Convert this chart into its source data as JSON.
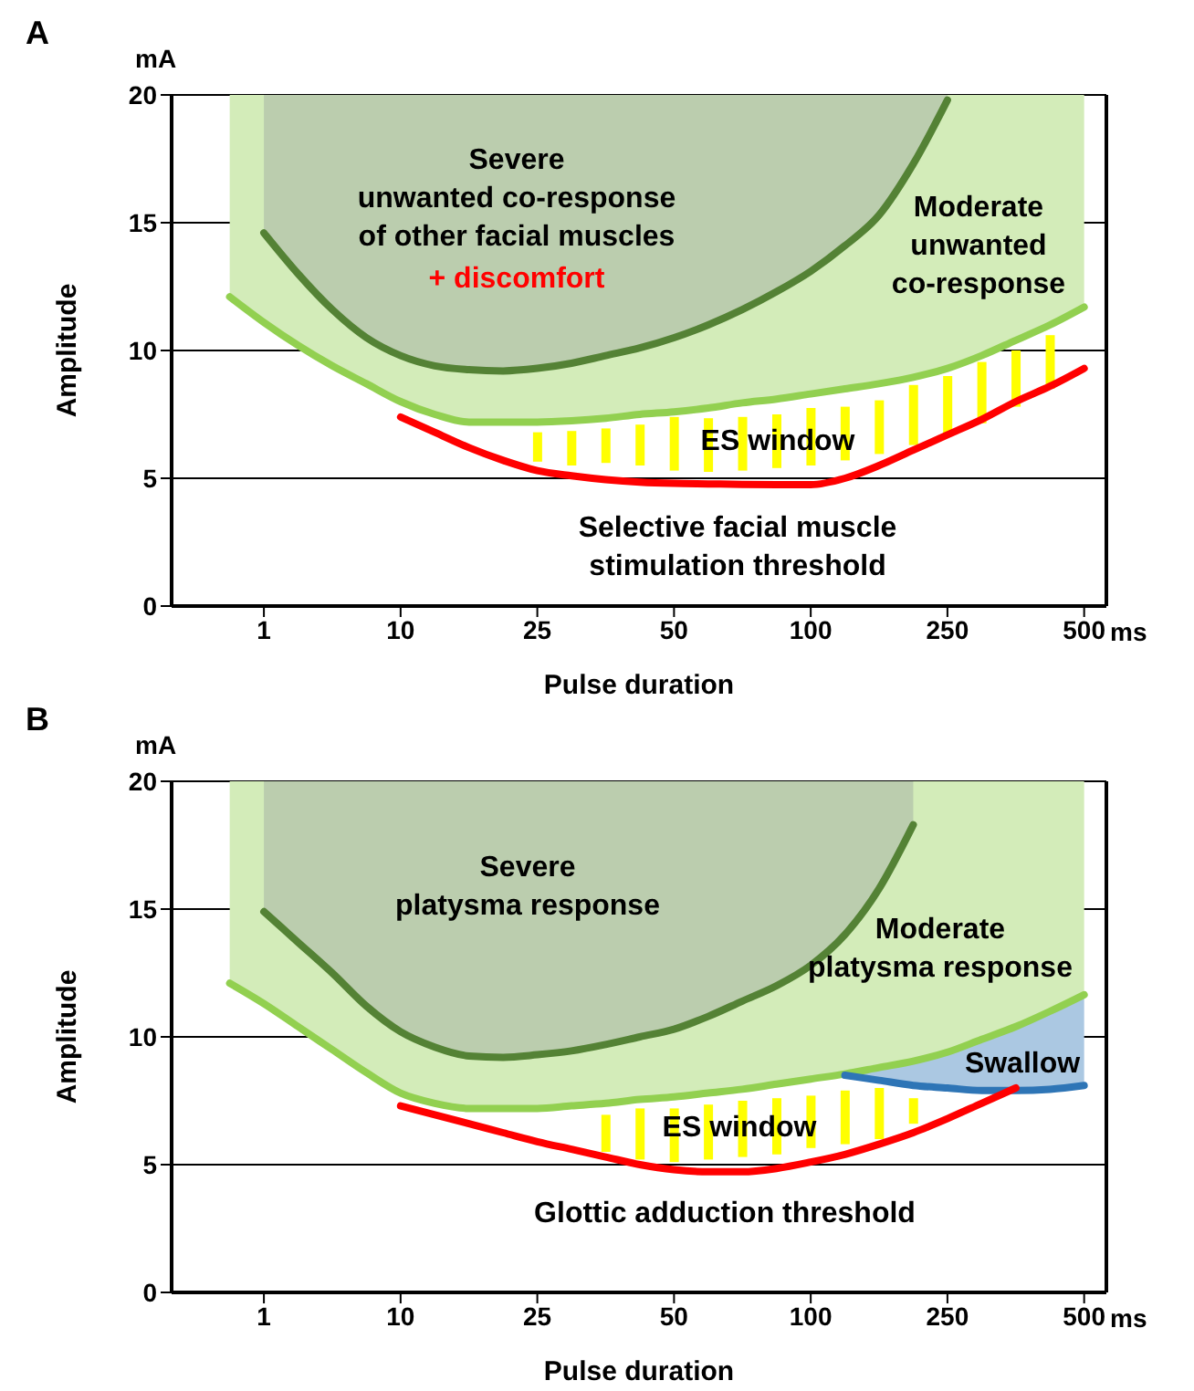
{
  "chart_data": [
    {
      "type": "line",
      "title": "A",
      "xlabel": "Pulse duration",
      "ylabel": "Amplitude",
      "ylim": [
        0,
        20
      ],
      "yticks": [
        0,
        5,
        10,
        15,
        20
      ],
      "grid": "y",
      "categories": [
        null,
        "1",
        null,
        null,
        null,
        "10",
        null,
        null,
        null,
        "25",
        null,
        null,
        null,
        "50",
        null,
        null,
        null,
        "100",
        null,
        null,
        null,
        "250",
        null,
        null,
        null,
        "500"
      ],
      "annotations": [
        "mA",
        "ms",
        "Severe\nunwanted co-response\nof other facial muscles",
        "+ discomfort",
        "Moderate\nunwanted\nco-response",
        "ES window",
        "Selective facial muscle\nstimulation threshold"
      ],
      "series": [
        {
          "color": "#92d050",
          "values": [
            12.1,
            11.1,
            10.2,
            9.4,
            8.7,
            8.0,
            7.5,
            7.2,
            7.2,
            7.2,
            7.25,
            7.35,
            7.5,
            7.6,
            7.75,
            7.95,
            8.1,
            8.3,
            8.5,
            8.7,
            8.95,
            9.3,
            9.8,
            10.4,
            11.0,
            11.7
          ],
          "lower": [
            12.1,
            11.1,
            10.2,
            9.4,
            8.7,
            8.0,
            7.5,
            7.2,
            7.2,
            7.2,
            7.25,
            7.35,
            7.5,
            7.6,
            7.75,
            7.95,
            8.1,
            8.3,
            8.5,
            8.7,
            8.95,
            9.3,
            9.8,
            10.4,
            11.0,
            11.7
          ],
          "upper": [
            20,
            20,
            20,
            20,
            20,
            20,
            20,
            20,
            20,
            20,
            20,
            20,
            20,
            20,
            20,
            20,
            20,
            20,
            20,
            20,
            20,
            20,
            20,
            20,
            20,
            20
          ]
        },
        {
          "color": "#548235",
          "values": [
            null,
            14.6,
            13.0,
            11.6,
            10.5,
            9.8,
            9.4,
            9.25,
            9.2,
            9.3,
            9.5,
            9.8,
            10.1,
            10.5,
            11.0,
            11.6,
            12.3,
            13.1,
            14.1,
            15.3,
            17.3,
            19.8,
            null,
            null,
            null,
            null
          ],
          "lower": [
            null,
            14.6,
            13.0,
            11.6,
            10.5,
            9.8,
            9.4,
            9.25,
            9.2,
            9.3,
            9.5,
            9.8,
            10.1,
            10.5,
            11.0,
            11.6,
            12.3,
            13.1,
            14.1,
            15.3,
            17.3,
            19.8,
            null,
            null,
            null,
            null
          ],
          "upper": [
            null,
            20,
            20,
            20,
            20,
            20,
            20,
            20,
            20,
            20,
            20,
            20,
            20,
            20,
            20,
            20,
            20,
            20,
            20,
            20,
            20,
            20,
            null,
            null,
            null,
            null
          ]
        },
        {
          "type": "bar",
          "color": "#ffff00",
          "base": [
            null,
            null,
            null,
            null,
            null,
            null,
            null,
            null,
            null,
            5.65,
            5.5,
            5.6,
            5.5,
            5.3,
            5.25,
            5.3,
            5.4,
            5.5,
            5.7,
            5.95,
            6.3,
            6.75,
            7.15,
            7.8,
            8.5,
            null
          ],
          "values": [
            null,
            null,
            null,
            null,
            null,
            null,
            null,
            null,
            null,
            1.15,
            1.35,
            1.35,
            1.6,
            2.1,
            2.1,
            2.1,
            2.1,
            2.25,
            2.1,
            2.1,
            2.35,
            2.25,
            2.4,
            2.2,
            2.1,
            null
          ]
        },
        {
          "color": "#ff0000",
          "values": [
            null,
            null,
            null,
            null,
            null,
            7.4,
            6.8,
            6.2,
            5.7,
            5.3,
            5.1,
            4.95,
            4.85,
            4.8,
            4.78,
            4.76,
            4.75,
            4.75,
            5.0,
            5.5,
            6.1,
            6.7,
            7.3,
            8.0,
            8.6,
            9.3
          ]
        }
      ]
    },
    {
      "type": "line",
      "title": "B",
      "xlabel": "Pulse duration",
      "ylabel": "Amplitude",
      "ylim": [
        0,
        20
      ],
      "yticks": [
        0,
        5,
        10,
        15,
        20
      ],
      "grid": "y",
      "categories": [
        null,
        "1",
        null,
        null,
        null,
        "10",
        null,
        null,
        null,
        "25",
        null,
        null,
        null,
        "50",
        null,
        null,
        null,
        "100",
        null,
        null,
        null,
        "250",
        null,
        null,
        null,
        "500"
      ],
      "annotations": [
        "mA",
        "ms",
        "Severe\nplatysma response",
        "Moderate\nplatysma response",
        "Swallow",
        "ES window",
        "Glottic adduction threshold"
      ],
      "series": [
        {
          "color": "#92d050",
          "values": [
            12.1,
            11.3,
            10.4,
            9.5,
            8.6,
            7.8,
            7.4,
            7.2,
            7.2,
            7.2,
            7.3,
            7.4,
            7.55,
            7.65,
            7.8,
            7.95,
            8.15,
            8.35,
            8.55,
            8.8,
            9.05,
            9.4,
            9.9,
            10.4,
            11.0,
            11.65
          ],
          "lower": [
            12.1,
            11.3,
            10.4,
            9.5,
            8.6,
            7.8,
            7.4,
            7.2,
            7.2,
            7.2,
            7.3,
            7.4,
            7.55,
            7.65,
            7.8,
            7.95,
            8.15,
            8.35,
            8.55,
            8.8,
            9.05,
            9.4,
            9.9,
            10.4,
            11.0,
            11.65
          ],
          "upper": [
            20,
            20,
            20,
            20,
            20,
            20,
            20,
            20,
            20,
            20,
            20,
            20,
            20,
            20,
            20,
            20,
            20,
            20,
            20,
            20,
            20,
            20,
            20,
            20,
            20,
            20
          ]
        },
        {
          "color": "#548235",
          "values": [
            null,
            14.9,
            13.7,
            12.5,
            11.2,
            10.2,
            9.6,
            9.25,
            9.2,
            9.3,
            9.45,
            9.7,
            10.0,
            10.3,
            10.8,
            11.4,
            12.0,
            12.8,
            14.0,
            15.8,
            18.3,
            null,
            null,
            null,
            null,
            null
          ],
          "lower": [
            null,
            14.9,
            13.7,
            12.5,
            11.2,
            10.2,
            9.6,
            9.25,
            9.2,
            9.3,
            9.45,
            9.7,
            10.0,
            10.3,
            10.8,
            11.4,
            12.0,
            12.8,
            14.0,
            15.8,
            18.3,
            null,
            null,
            null,
            null,
            null
          ],
          "upper": [
            null,
            20,
            20,
            20,
            20,
            20,
            20,
            20,
            20,
            20,
            20,
            20,
            20,
            20,
            20,
            20,
            20,
            20,
            20,
            20,
            20,
            null,
            null,
            null,
            null,
            null
          ]
        },
        {
          "color": "#2e75b6",
          "values": [
            null,
            null,
            null,
            null,
            null,
            null,
            null,
            null,
            null,
            null,
            null,
            null,
            null,
            null,
            null,
            null,
            null,
            null,
            8.5,
            8.3,
            8.1,
            8.0,
            7.9,
            7.9,
            7.95,
            8.1
          ],
          "lower": [
            null,
            null,
            null,
            null,
            null,
            null,
            null,
            null,
            null,
            null,
            null,
            null,
            null,
            null,
            null,
            null,
            null,
            null,
            8.5,
            8.3,
            8.1,
            8.0,
            7.9,
            7.9,
            7.95,
            8.1
          ],
          "upper": [
            null,
            null,
            null,
            null,
            null,
            null,
            null,
            null,
            null,
            null,
            null,
            null,
            null,
            null,
            null,
            null,
            null,
            null,
            8.55,
            8.8,
            9.05,
            9.4,
            9.9,
            10.4,
            11.0,
            11.65
          ]
        },
        {
          "type": "bar",
          "color": "#ffff00",
          "base": [
            null,
            null,
            null,
            null,
            null,
            null,
            null,
            null,
            null,
            null,
            null,
            5.5,
            5.2,
            5.1,
            5.2,
            5.3,
            5.4,
            5.65,
            5.8,
            6.0,
            6.6,
            null,
            null,
            null,
            null,
            null
          ],
          "values": [
            null,
            null,
            null,
            null,
            null,
            null,
            null,
            null,
            null,
            null,
            null,
            1.45,
            2.0,
            2.1,
            2.15,
            2.2,
            2.2,
            2.05,
            2.1,
            2.0,
            1.0,
            null,
            null,
            null,
            null,
            null
          ]
        },
        {
          "color": "#ff0000",
          "values": [
            null,
            null,
            null,
            null,
            null,
            7.3,
            6.95,
            6.6,
            6.25,
            5.9,
            5.6,
            5.3,
            5.0,
            4.8,
            4.72,
            4.72,
            4.85,
            5.1,
            5.4,
            5.8,
            6.25,
            6.8,
            7.4,
            8.0,
            null,
            null
          ]
        }
      ]
    }
  ]
}
